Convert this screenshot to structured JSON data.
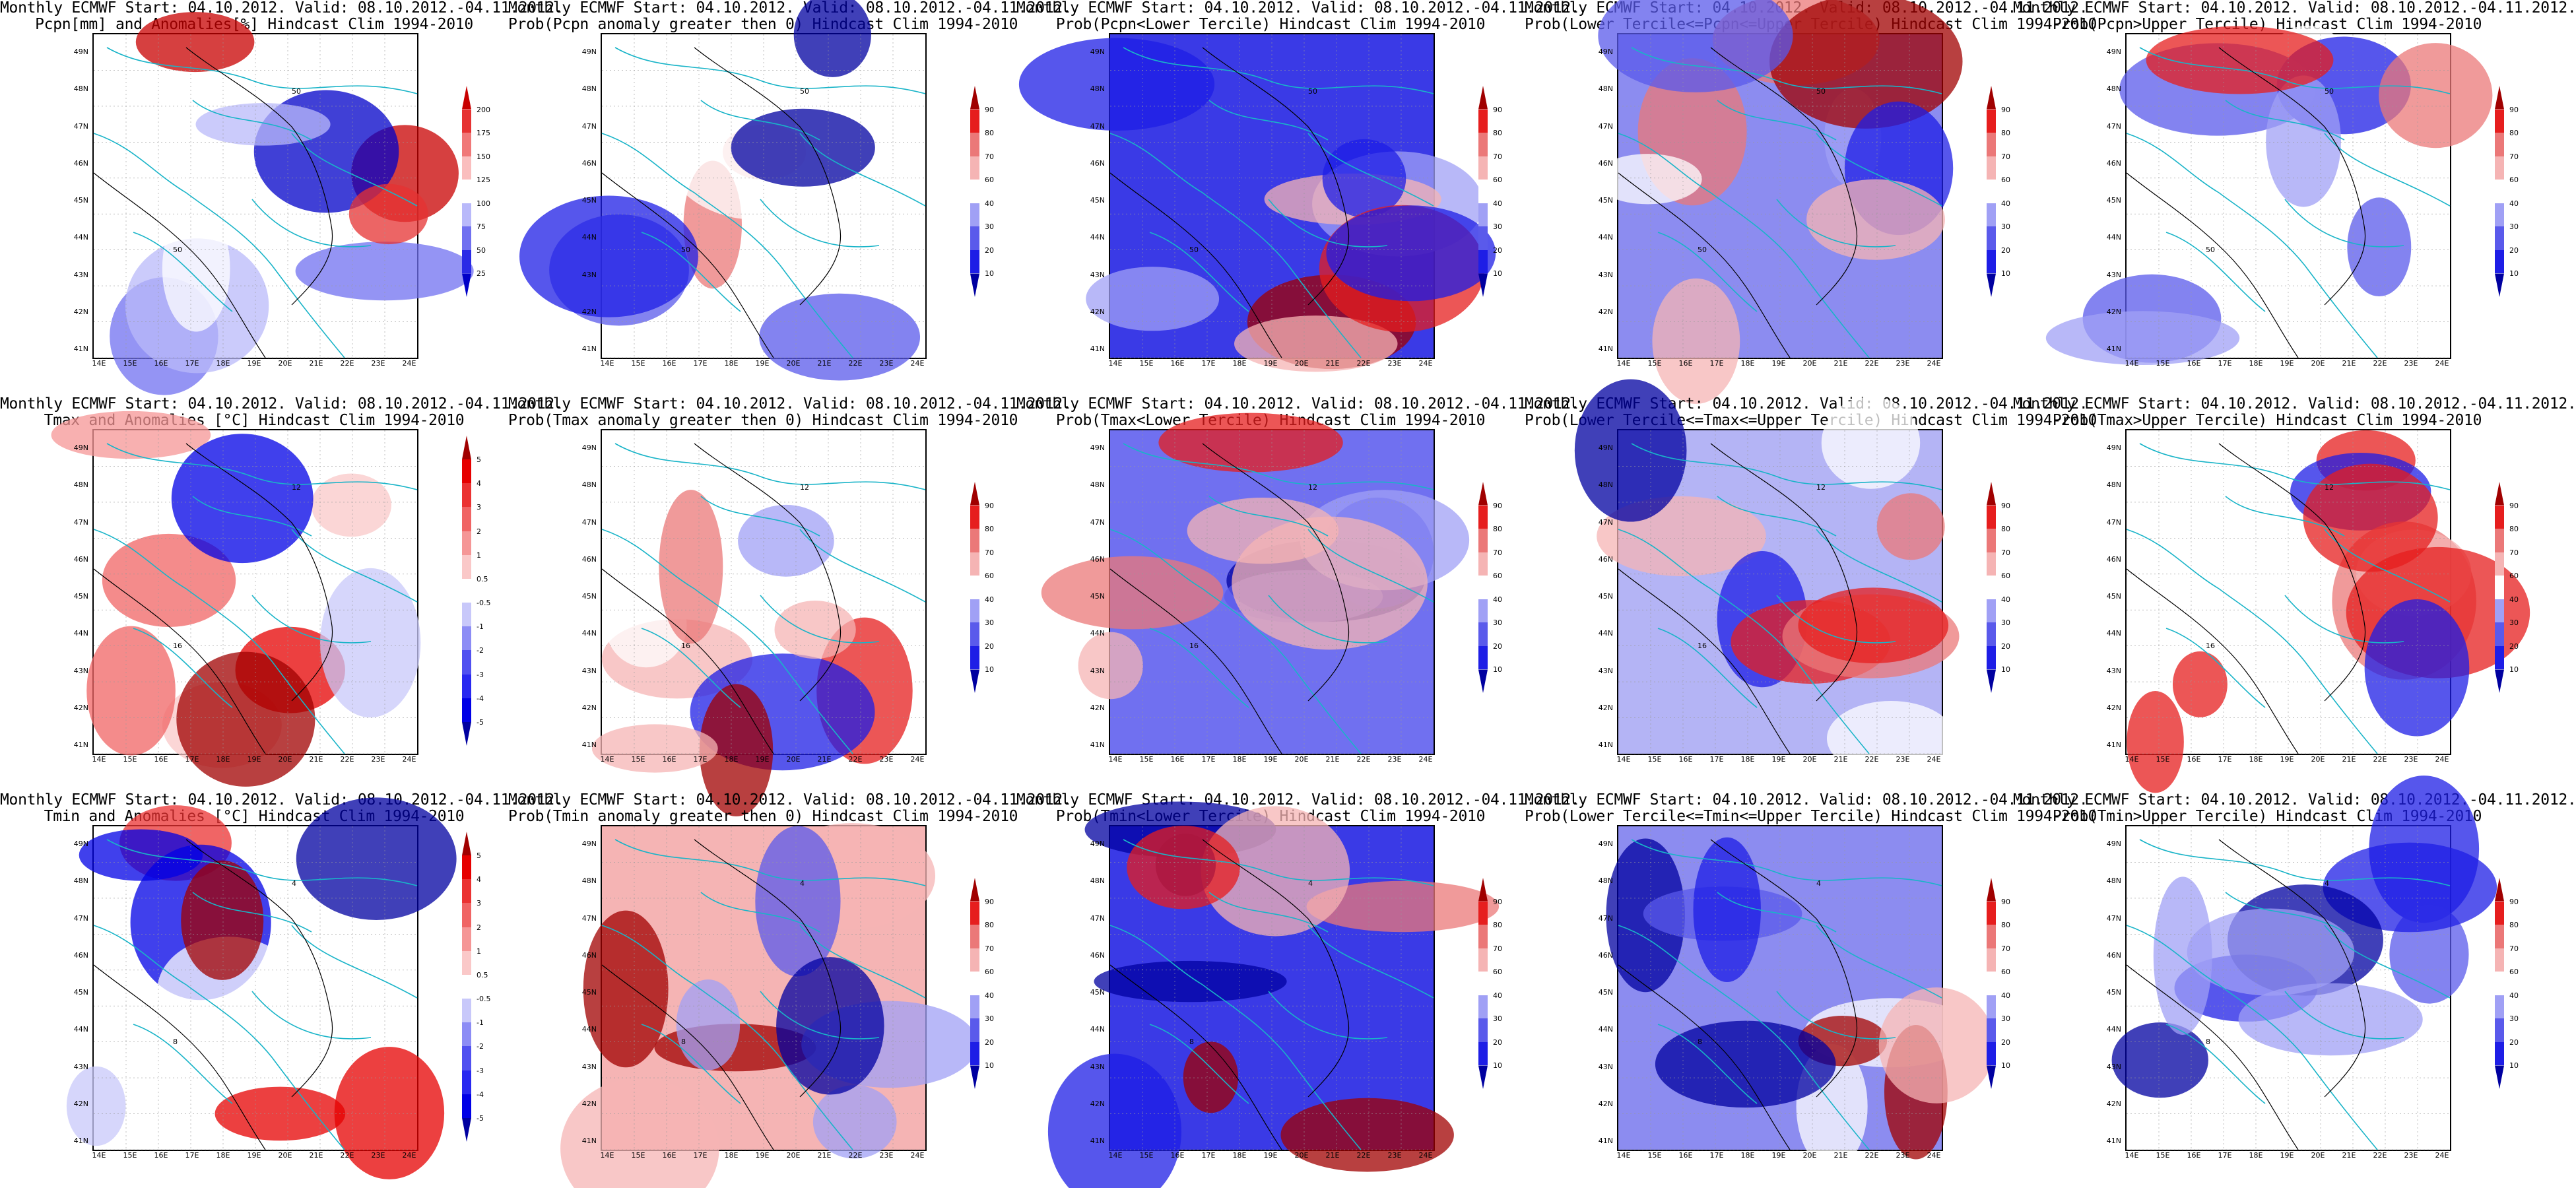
{
  "figure_header": "Monthly ECMWF Start: 04.10.2012. Valid: 08.10.2012.-04.11.2012.",
  "lat_labels": [
    "41N",
    "42N",
    "43N",
    "44N",
    "45N",
    "46N",
    "47N",
    "48N",
    "49N"
  ],
  "lon_labels": [
    "14E",
    "15E",
    "16E",
    "17E",
    "18E",
    "19E",
    "20E",
    "21E",
    "22E",
    "23E",
    "24E"
  ],
  "colorbars": {
    "pcpn": {
      "labels": [
        "25",
        "50",
        "75",
        "100",
        "125",
        "150",
        "175",
        "200"
      ],
      "colors": [
        "#0000c8",
        "#2a2ae6",
        "#7070f0",
        "#b9b9fa",
        "#ffffff",
        "#fabebe",
        "#f07878",
        "#e63232",
        "#c80000"
      ]
    },
    "prob": {
      "labels": [
        "10",
        "20",
        "30",
        "40",
        "60",
        "70",
        "80",
        "90"
      ],
      "colors": [
        "#0000a0",
        "#1e1ee6",
        "#5a5aeb",
        "#a0a0f5",
        "#ffffff",
        "#f5b4b4",
        "#eb7878",
        "#e61e1e",
        "#a00000"
      ]
    },
    "temp": {
      "labels": [
        "-5",
        "-4",
        "-3",
        "-2",
        "-1",
        "-0.5",
        "0.5",
        "1",
        "2",
        "3",
        "4",
        "5"
      ],
      "colors": [
        "#0000a0",
        "#0000e6",
        "#2828f0",
        "#5050f0",
        "#8c8cf5",
        "#c8c8fa",
        "#ffffff",
        "#fac8c8",
        "#f59696",
        "#f06464",
        "#eb3232",
        "#e60000",
        "#a00000"
      ]
    }
  },
  "panels": [
    {
      "line1": "Monthly ECMWF Start: 04.10.2012. Valid: 08.10.2012.-04.11.2012.",
      "line2": "Pcpn[mm] and Anomalies[%] Hindcast Clim 1994-2010",
      "cbar": "pcpn",
      "fill": "#ffffff",
      "contours": [
        "50",
        "50"
      ]
    },
    {
      "line1": "Monthly ECMWF Start: 04.10.2012. Valid: 08.10.2012.-04.11.2012.",
      "line2": "Prob(Pcpn anomaly greater then 0) Hindcast Clim 1994-2010",
      "cbar": "prob",
      "fill": "#ffffff",
      "contours": [
        "50",
        "50"
      ]
    },
    {
      "line1": "Monthly ECMWF Start: 04.10.2012. Valid: 08.10.2012.-04.11.2012.",
      "line2": "Prob(Pcpn<Lower Tercile) Hindcast Clim 1994-2010",
      "cbar": "prob",
      "fill": "#3a3ae6",
      "contours": [
        "50",
        "50"
      ]
    },
    {
      "line1": "Monthly ECMWF Start: 04.10.2012. Valid: 08.10.2012.-04.11.2012.",
      "line2": "Prob(Lower Tercile<=Pcpn<=Upper Tercile) Hindcast Clim 1994-2010",
      "cbar": "prob",
      "fill": "#8c8cf0",
      "contours": [
        "50",
        "50"
      ]
    },
    {
      "line1": "Monthly ECMWF Start: 04.10.2012. Valid: 08.10.2012.-04.11.2012.",
      "line2": "Prob(Pcpn>Upper Tercile) Hindcast Clim 1994-2010",
      "cbar": "prob",
      "fill": "#ffffff",
      "contours": [
        "50",
        "50"
      ]
    },
    {
      "line1": "Monthly ECMWF Start: 04.10.2012. Valid: 08.10.2012.-04.11.2012.",
      "line2": "Tmax and Anomalies [°C] Hindcast Clim 1994-2010",
      "cbar": "temp",
      "fill": "#ffffff",
      "contours": [
        "12",
        "16"
      ]
    },
    {
      "line1": "Monthly ECMWF Start: 04.10.2012. Valid: 08.10.2012.-04.11.2012.",
      "line2": "Prob(Tmax anomaly greater then 0) Hindcast Clim 1994-2010",
      "cbar": "prob",
      "fill": "#ffffff",
      "contours": [
        "12",
        "16"
      ]
    },
    {
      "line1": "Monthly ECMWF Start: 04.10.2012. Valid: 08.10.2012.-04.11.2012.",
      "line2": "Prob(Tmax<Lower Tercile) Hindcast Clim 1994-2010",
      "cbar": "prob",
      "fill": "#7070f0",
      "contours": [
        "12",
        "16"
      ]
    },
    {
      "line1": "Monthly ECMWF Start: 04.10.2012. Valid: 08.10.2012.-04.11.2012.",
      "line2": "Prob(Lower Tercile<=Tmax<=Upper Tercile) Hindcast Clim 1994-2010",
      "cbar": "prob",
      "fill": "#b4b4f5",
      "contours": [
        "12",
        "16"
      ]
    },
    {
      "line1": "Monthly ECMWF Start: 04.10.2012. Valid: 08.10.2012.-04.11.2012.",
      "line2": "Prob(Tmax>Upper Tercile) Hindcast Clim 1994-2010",
      "cbar": "prob",
      "fill": "#ffffff",
      "contours": [
        "12",
        "16"
      ]
    },
    {
      "line1": "Monthly ECMWF Start: 04.10.2012. Valid: 08.10.2012.-04.11.2012.",
      "line2": "Tmin and Anomalies [°C] Hindcast Clim 1994-2010",
      "cbar": "temp",
      "fill": "#ffffff",
      "contours": [
        "4",
        "8"
      ]
    },
    {
      "line1": "Monthly ECMWF Start: 04.10.2012. Valid: 08.10.2012.-04.11.2012.",
      "line2": "Prob(Tmin anomaly greater then 0) Hindcast Clim 1994-2010",
      "cbar": "prob",
      "fill": "#f5b4b4",
      "contours": [
        "4",
        "8"
      ]
    },
    {
      "line1": "Monthly ECMWF Start: 04.10.2012. Valid: 08.10.2012.-04.11.2012.",
      "line2": "Prob(Tmin<Lower Tercile) Hindcast Clim 1994-2010",
      "cbar": "prob",
      "fill": "#3a3ae6",
      "contours": [
        "4",
        "8"
      ]
    },
    {
      "line1": "Monthly ECMWF Start: 04.10.2012. Valid: 08.10.2012.-04.11.2012.",
      "line2": "Prob(Lower Tercile<=Tmin<=Upper Tercile) Hindcast Clim 1994-2010",
      "cbar": "prob",
      "fill": "#8c8cf0",
      "contours": [
        "4",
        "8"
      ]
    },
    {
      "line1": "Monthly ECMWF Start: 04.10.2012. Valid: 08.10.2012.-04.11.2012.",
      "line2": "Prob(Tmin>Upper Tercile) Hindcast Clim 1994-2010",
      "cbar": "prob",
      "fill": "#ffffff",
      "contours": [
        "4",
        "8"
      ]
    }
  ]
}
